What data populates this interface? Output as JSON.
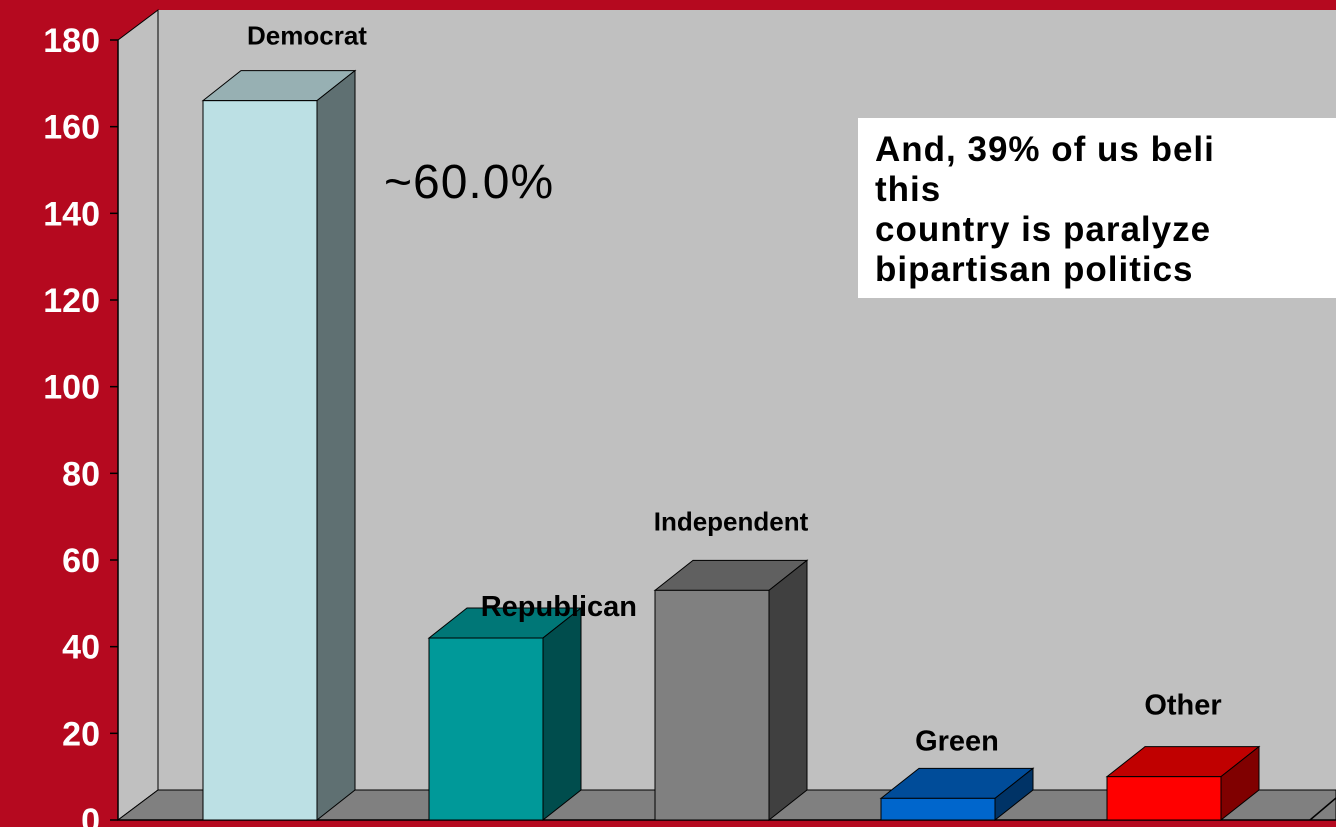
{
  "chart_data": {
    "type": "bar",
    "categories": [
      "Democrat",
      "Republican",
      "Independent",
      "Green",
      "Other"
    ],
    "values": [
      166,
      42,
      53,
      5,
      10
    ],
    "colors": {
      "Democrat": {
        "front": "#bce0e4",
        "side": "#5f7072",
        "top": "#97b0b3"
      },
      "Republican": {
        "front": "#009999",
        "side": "#004d4d",
        "top": "#007777"
      },
      "Independent": {
        "front": "#808080",
        "side": "#404040",
        "top": "#606060"
      },
      "Green": {
        "front": "#0066cc",
        "side": "#003366",
        "top": "#004c99"
      },
      "Other": {
        "front": "#ff0000",
        "side": "#800000",
        "top": "#c00000"
      }
    },
    "ylim": [
      0,
      180
    ],
    "yticks": [
      "0",
      "20",
      "40",
      "60",
      "80",
      "100",
      "120",
      "140",
      "160",
      "180"
    ],
    "grid": false,
    "background": "#c0c0c0",
    "annotation": "~60.0%"
  },
  "note": {
    "lines": [
      "And, 39% of us beli",
      "this",
      "country is paralyze",
      "bipartisan politics"
    ]
  }
}
